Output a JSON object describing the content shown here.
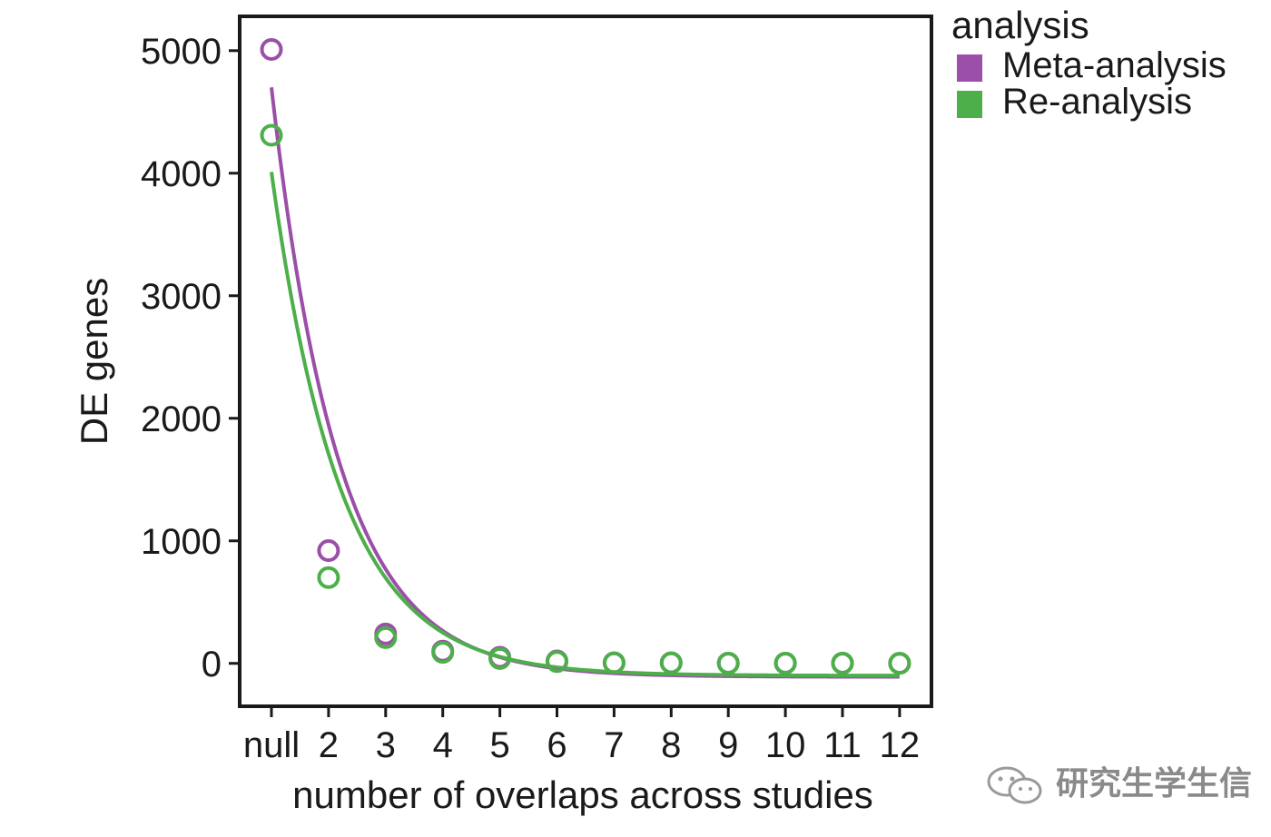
{
  "chart_data": {
    "type": "scatter",
    "xlabel": "number of overlaps across studies",
    "ylabel": "DE genes",
    "categories": [
      "null",
      "2",
      "3",
      "4",
      "5",
      "6",
      "7",
      "8",
      "9",
      "10",
      "11",
      "12"
    ],
    "yticks": [
      0,
      1000,
      2000,
      3000,
      4000,
      5000
    ],
    "ylim": [
      -350,
      5280
    ],
    "legend": {
      "title": "analysis",
      "position": "right"
    },
    "grid": false,
    "series": [
      {
        "name": "Meta-analysis",
        "color": "#9b4fa8",
        "values": [
          5010,
          920,
          240,
          100,
          50,
          20,
          5,
          5,
          2,
          2,
          2,
          1
        ],
        "fit": {
          "model": "exponential",
          "start": 4700,
          "asymptote": -110,
          "decay_per_step": 0.85
        }
      },
      {
        "name": "Re-analysis",
        "color": "#4daf4a",
        "values": [
          4310,
          700,
          210,
          90,
          40,
          15,
          5,
          5,
          2,
          2,
          2,
          1
        ],
        "fit": {
          "model": "exponential",
          "start": 4010,
          "asymptote": -100,
          "decay_per_step": 0.82
        }
      }
    ]
  },
  "watermark": {
    "text": "研究生学生信",
    "icon": "wechat-icon"
  }
}
